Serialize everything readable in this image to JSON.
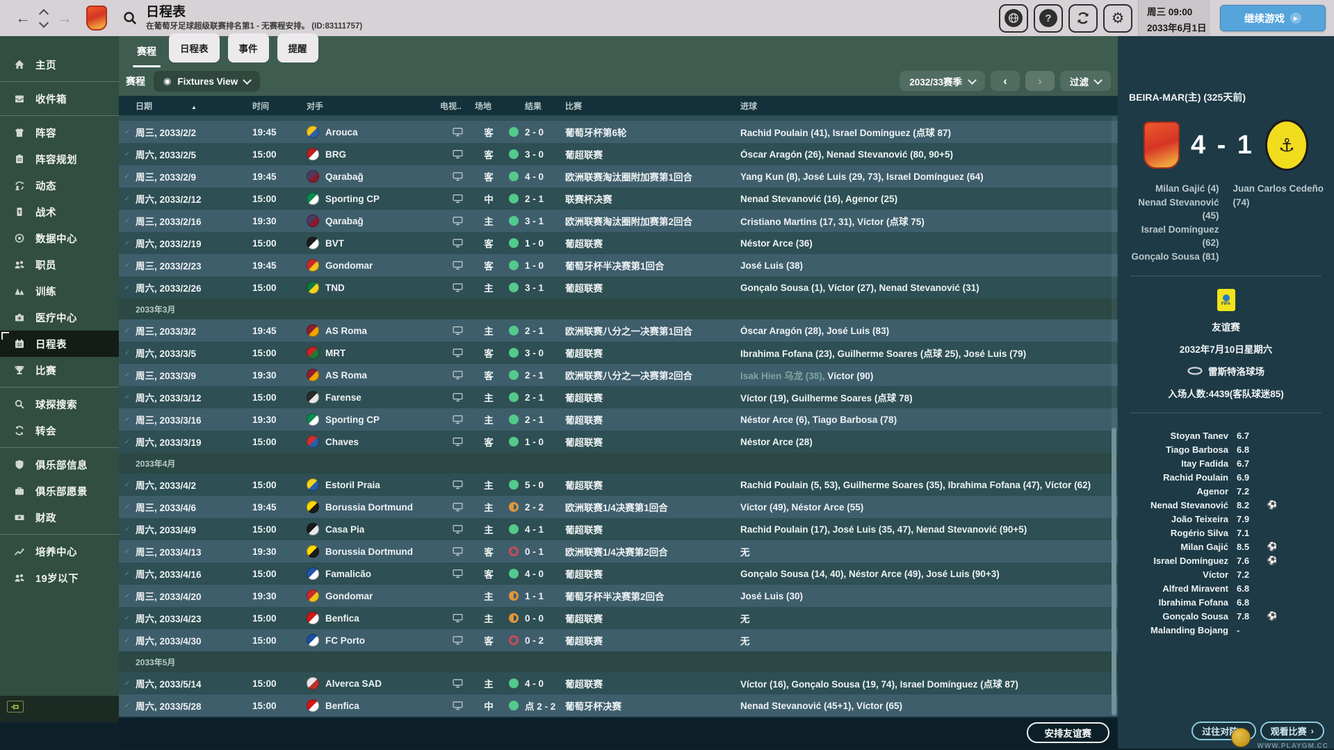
{
  "topbar": {
    "title": "日程表",
    "subtitle": "在葡萄牙足球超级联赛排名第1 - 无赛程安排。 (ID:83111757)",
    "clock_day": "周三 09:00",
    "clock_date": "2033年6月1日",
    "continue_label": "继续游戏"
  },
  "sidebar": {
    "groups": [
      {
        "items": [
          {
            "key": "home",
            "label": "主页",
            "icon": "home-icon"
          }
        ]
      },
      {
        "items": [
          {
            "key": "inbox",
            "label": "收件箱",
            "icon": "inbox-icon"
          }
        ]
      },
      {
        "items": [
          {
            "key": "squad",
            "label": "阵容",
            "icon": "shirt-icon"
          },
          {
            "key": "squad-planner",
            "label": "阵容规划",
            "icon": "clipboard-icon"
          },
          {
            "key": "dynamics",
            "label": "动态",
            "icon": "dynamics-icon"
          },
          {
            "key": "tactics",
            "label": "战术",
            "icon": "tactics-icon"
          },
          {
            "key": "data-hub",
            "label": "数据中心",
            "icon": "datahub-icon"
          },
          {
            "key": "staff",
            "label": "职员",
            "icon": "staff-icon"
          },
          {
            "key": "training",
            "label": "训练",
            "icon": "training-icon"
          },
          {
            "key": "medical-centre",
            "label": "医疗中心",
            "icon": "medical-icon"
          },
          {
            "key": "schedule",
            "label": "日程表",
            "icon": "calendar-icon",
            "selected": true
          },
          {
            "key": "competitions",
            "label": "比赛",
            "icon": "trophy-icon"
          }
        ]
      },
      {
        "items": [
          {
            "key": "scouting",
            "label": "球探搜索",
            "icon": "scout-icon"
          },
          {
            "key": "transfers",
            "label": "转会",
            "icon": "transfer-icon"
          }
        ]
      },
      {
        "items": [
          {
            "key": "club-info",
            "label": "俱乐部信息",
            "icon": "shield-icon"
          },
          {
            "key": "club-vision",
            "label": "俱乐部愿景",
            "icon": "briefcase-icon"
          },
          {
            "key": "finances",
            "label": "财政",
            "icon": "money-icon"
          }
        ]
      },
      {
        "items": [
          {
            "key": "development-centre",
            "label": "培养中心",
            "icon": "growth-icon"
          },
          {
            "key": "under-19s",
            "label": "19岁以下",
            "icon": "youth-icon"
          }
        ]
      }
    ]
  },
  "tabs": [
    {
      "key": "fixtures",
      "label": "赛程",
      "active": true
    },
    {
      "key": "calendar",
      "label": "日程表",
      "active": false
    },
    {
      "key": "events",
      "label": "事件",
      "active": false
    },
    {
      "key": "reminders",
      "label": "提醒",
      "active": false
    }
  ],
  "filter_bar": {
    "section_label": "赛程",
    "view_label": "Fixtures View",
    "season": "2032/33赛季",
    "filter_label": "过滤"
  },
  "table": {
    "columns": [
      "日期",
      "时间",
      "对手",
      "电视..",
      "场地",
      "结果",
      "比赛",
      "进球"
    ],
    "groups": [
      {
        "month": null,
        "fixtures": [
          {
            "date": "周三, 2033/2/2",
            "time": "19:45",
            "opponent": "Arouca",
            "badge": [
              "#f5c51a",
              "#2a61a8"
            ],
            "tv": true,
            "venue": "客",
            "result": "win",
            "score": "2 - 0",
            "competition": "葡萄牙杯第6轮",
            "goals": "Rachid Poulain (41), Israel Domínguez (点球 87)",
            "shade": "light"
          },
          {
            "date": "周六, 2033/2/5",
            "time": "15:00",
            "opponent": "BRG",
            "badge": [
              "#c01f1f",
              "#ffffff"
            ],
            "tv": true,
            "venue": "客",
            "result": "win",
            "score": "3 - 0",
            "competition": "葡超联赛",
            "goals": "Óscar Aragón (26), Nenad Stevanović (80, 90+5)",
            "shade": "dark"
          },
          {
            "date": "周三, 2033/2/9",
            "time": "19:45",
            "opponent": "Qarabağ",
            "badge": [
              "#4a3b5e",
              "#8a1b2e"
            ],
            "tv": true,
            "venue": "客",
            "result": "win",
            "score": "4 - 0",
            "competition": "欧洲联赛淘汰圈附加赛第1回合",
            "goals": "Yang Kun (8), José Luis (29, 73), Israel Domínguez (64)",
            "shade": "light"
          },
          {
            "date": "周六, 2033/2/12",
            "time": "15:00",
            "opponent": "Sporting CP",
            "badge": [
              "#0c8a50",
              "#ffffff"
            ],
            "tv": true,
            "venue": "中",
            "result": "win",
            "score": "2 - 1",
            "competition": "联赛杯决赛",
            "goals": "Nenad Stevanović (16), Agenor (25)",
            "shade": "dark"
          },
          {
            "date": "周三, 2033/2/16",
            "time": "19:30",
            "opponent": "Qarabağ",
            "badge": [
              "#4a3b5e",
              "#8a1b2e"
            ],
            "tv": true,
            "venue": "主",
            "result": "win",
            "score": "3 - 1",
            "competition": "欧洲联赛淘汰圈附加赛第2回合",
            "goals": "Cristiano Martins (17, 31), Víctor (点球 75)",
            "shade": "light"
          },
          {
            "date": "周六, 2033/2/19",
            "time": "15:00",
            "opponent": "BVT",
            "badge": [
              "#1c1c1c",
              "#ffffff"
            ],
            "tv": true,
            "venue": "客",
            "result": "win",
            "score": "1 - 0",
            "competition": "葡超联赛",
            "goals": "Néstor Arce (36)",
            "shade": "dark"
          },
          {
            "date": "周三, 2033/2/23",
            "time": "19:45",
            "opponent": "Gondomar",
            "badge": [
              "#cc2a2a",
              "#f0c419"
            ],
            "tv": true,
            "venue": "客",
            "result": "win",
            "score": "1 - 0",
            "competition": "葡萄牙杯半决赛第1回合",
            "goals": "José Luis (38)",
            "shade": "light"
          },
          {
            "date": "周六, 2033/2/26",
            "time": "15:00",
            "opponent": "TND",
            "badge": [
              "#0f7a3d",
              "#f2d41e"
            ],
            "tv": true,
            "venue": "主",
            "result": "win",
            "score": "3 - 1",
            "competition": "葡超联赛",
            "goals": "Gonçalo Sousa (1), Víctor (27), Nenad Stevanović (31)",
            "shade": "dark"
          }
        ]
      },
      {
        "month": "2033年3月",
        "fixtures": [
          {
            "date": "周三, 2033/3/2",
            "time": "19:45",
            "opponent": "AS Roma",
            "badge": [
              "#8e1f2f",
              "#f0a500"
            ],
            "tv": true,
            "venue": "主",
            "result": "win",
            "score": "2 - 1",
            "competition": "欧洲联赛八分之一决赛第1回合",
            "goals": "Óscar Aragón (28), José Luis (83)",
            "shade": "light"
          },
          {
            "date": "周六, 2033/3/5",
            "time": "15:00",
            "opponent": "MRT",
            "badge": [
              "#cc2222",
              "#1d7a3a"
            ],
            "tv": true,
            "venue": "客",
            "result": "win",
            "score": "3 - 0",
            "competition": "葡超联赛",
            "goals": "Ibrahima Fofana (23), Guilherme Soares (点球 25), José Luis (79)",
            "shade": "dark"
          },
          {
            "date": "周三, 2033/3/9",
            "time": "19:30",
            "opponent": "AS Roma",
            "badge": [
              "#8e1f2f",
              "#f0a500"
            ],
            "tv": true,
            "venue": "客",
            "result": "win",
            "score": "2 - 1",
            "competition": "欧洲联赛八分之一决赛第2回合",
            "goals_muted": "Isak Hien 乌龙 (38), ",
            "goals": "Víctor (90)",
            "shade": "light"
          },
          {
            "date": "周六, 2033/3/12",
            "time": "15:00",
            "opponent": "Farense",
            "badge": [
              "#2a2a2a",
              "#e8e8e8"
            ],
            "tv": true,
            "venue": "主",
            "result": "win",
            "score": "2 - 1",
            "competition": "葡超联赛",
            "goals": "Víctor (19), Guilherme Soares (点球 78)",
            "shade": "dark"
          },
          {
            "date": "周三, 2033/3/16",
            "time": "19:30",
            "opponent": "Sporting CP",
            "badge": [
              "#0c8a50",
              "#ffffff"
            ],
            "tv": true,
            "venue": "主",
            "result": "win",
            "score": "2 - 1",
            "competition": "葡超联赛",
            "goals": "Néstor Arce (6), Tiago Barbosa (78)",
            "shade": "light"
          },
          {
            "date": "周六, 2033/3/19",
            "time": "15:00",
            "opponent": "Chaves",
            "badge": [
              "#d03030",
              "#2a5fa8"
            ],
            "tv": true,
            "venue": "客",
            "result": "win",
            "score": "1 - 0",
            "competition": "葡超联赛",
            "goals": "Néstor Arce (28)",
            "shade": "dark"
          }
        ]
      },
      {
        "month": "2033年4月",
        "fixtures": [
          {
            "date": "周六, 2033/4/2",
            "time": "15:00",
            "opponent": "Estoril Praia",
            "badge": [
              "#f2d41e",
              "#2a5fa8"
            ],
            "tv": true,
            "venue": "主",
            "result": "win",
            "score": "5 - 0",
            "competition": "葡超联赛",
            "goals": "Rachid Poulain (5, 53), Guilherme Soares (35), Ibrahima Fofana (47), Víctor (62)",
            "shade": "dark"
          },
          {
            "date": "周三, 2033/4/6",
            "time": "19:45",
            "opponent": "Borussia Dortmund",
            "badge": [
              "#ffd900",
              "#1a1a1a"
            ],
            "tv": true,
            "venue": "主",
            "result": "draw",
            "score": "2 - 2",
            "competition": "欧洲联赛1/4决赛第1回合",
            "goals": "Víctor (49), Néstor Arce (55)",
            "shade": "light"
          },
          {
            "date": "周六, 2033/4/9",
            "time": "15:00",
            "opponent": "Casa Pia",
            "badge": [
              "#1a1a1a",
              "#e8e8e8"
            ],
            "tv": true,
            "venue": "主",
            "result": "win",
            "score": "4 - 1",
            "competition": "葡超联赛",
            "goals": "Rachid Poulain (17), José Luis (35, 47), Nenad Stevanović (90+5)",
            "shade": "dark"
          },
          {
            "date": "周三, 2033/4/13",
            "time": "19:30",
            "opponent": "Borussia Dortmund",
            "badge": [
              "#ffd900",
              "#1a1a1a"
            ],
            "tv": true,
            "venue": "客",
            "result": "loss",
            "score": "0 - 1",
            "competition": "欧洲联赛1/4决赛第2回合",
            "goals": "无",
            "shade": "light"
          },
          {
            "date": "周六, 2033/4/16",
            "time": "15:00",
            "opponent": "Famalicão",
            "badge": [
              "#2255a8",
              "#ffffff"
            ],
            "tv": true,
            "venue": "客",
            "result": "win",
            "score": "4 - 0",
            "competition": "葡超联赛",
            "goals": "Gonçalo Sousa (14, 40), Néstor Arce (49), José Luis (90+3)",
            "shade": "dark"
          },
          {
            "date": "周三, 2033/4/20",
            "time": "19:30",
            "opponent": "Gondomar",
            "badge": [
              "#cc2a2a",
              "#f0c419"
            ],
            "tv": false,
            "venue": "主",
            "result": "draw",
            "score": "1 - 1",
            "competition": "葡萄牙杯半决赛第2回合",
            "goals": "José Luis (30)",
            "shade": "light"
          },
          {
            "date": "周六, 2033/4/23",
            "time": "15:00",
            "opponent": "Benfica",
            "badge": [
              "#d01818",
              "#ffffff"
            ],
            "tv": true,
            "venue": "主",
            "result": "draw",
            "score": "0 - 0",
            "competition": "葡超联赛",
            "goals": "无",
            "shade": "dark"
          },
          {
            "date": "周六, 2033/4/30",
            "time": "15:00",
            "opponent": "FC Porto",
            "badge": [
              "#1a4f9e",
              "#ffffff"
            ],
            "tv": true,
            "venue": "客",
            "result": "loss",
            "score": "0 - 2",
            "competition": "葡超联赛",
            "goals": "无",
            "shade": "light"
          }
        ]
      },
      {
        "month": "2033年5月",
        "fixtures": [
          {
            "date": "周六, 2033/5/14",
            "time": "15:00",
            "opponent": "Alverca SAD",
            "badge": [
              "#e8e8e8",
              "#c03028"
            ],
            "tv": true,
            "venue": "主",
            "result": "win",
            "score": "4 - 0",
            "competition": "葡超联赛",
            "goals": "Víctor (16), Gonçalo Sousa (19, 74), Israel Domínguez (点球 87)",
            "shade": "dark"
          },
          {
            "date": "周六, 2033/5/28",
            "time": "15:00",
            "opponent": "Benfica",
            "badge": [
              "#d01818",
              "#ffffff"
            ],
            "tv": true,
            "venue": "中",
            "result": "win",
            "score": "点 2 - 2",
            "competition": "葡萄牙杯决赛",
            "goals": "Nenad Stevanović (45+1), Víctor (65)",
            "shade": "light"
          }
        ]
      }
    ],
    "schedule_friendly_label": "安排友谊赛"
  },
  "match_panel": {
    "header": "BEIRA-MAR(主) (325天前)",
    "score": "4 - 1",
    "home_scorers": [
      "Milan Gajić (4)",
      "Nenad Stevanović (45)",
      "Israel Domínguez (62)",
      "Gonçalo Sousa (81)"
    ],
    "away_scorers": [
      "Juan Carlos Cedeño (74)"
    ],
    "competition": "友谊赛",
    "date": "2032年7月10日星期六",
    "stadium": "雷斯特洛球场",
    "attendance": "入场人数:4439(客队球迷85)",
    "ratings": [
      {
        "name": "Stoyan Tanev",
        "rating": "6.7",
        "goal": false
      },
      {
        "name": "Tiago Barbosa",
        "rating": "6.8",
        "goal": false
      },
      {
        "name": "Itay Fadida",
        "rating": "6.7",
        "goal": false
      },
      {
        "name": "Rachid Poulain",
        "rating": "6.9",
        "goal": false
      },
      {
        "name": "Agenor",
        "rating": "7.2",
        "goal": false
      },
      {
        "name": "Nenad Stevanović",
        "rating": "8.2",
        "goal": true
      },
      {
        "name": "João Teixeira",
        "rating": "7.9",
        "goal": false
      },
      {
        "name": "Rogério Silva",
        "rating": "7.1",
        "goal": false
      },
      {
        "name": "Milan Gajić",
        "rating": "8.5",
        "goal": true
      },
      {
        "name": "Israel Domínguez",
        "rating": "7.6",
        "goal": true
      },
      {
        "name": "Víctor",
        "rating": "7.2",
        "goal": false
      },
      {
        "name": "Alfred Miravent",
        "rating": "6.8",
        "goal": false
      },
      {
        "name": "Ibrahima Fofana",
        "rating": "6.8",
        "goal": false
      },
      {
        "name": "Gonçalo Sousa",
        "rating": "7.8",
        "goal": true
      },
      {
        "name": "Malanding Bojang",
        "rating": "-",
        "goal": false
      }
    ],
    "past_meetings_label": "过往对阵",
    "watch_match_label": "观看比赛"
  },
  "watermark": "WWW.PLAYGM.CC"
}
